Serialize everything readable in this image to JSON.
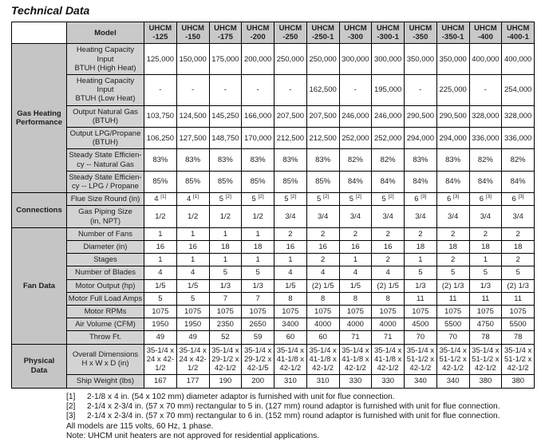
{
  "title": "Technical Data",
  "colors": {
    "header_bg": "#c9c9c9",
    "section_bg": "#c5c5c5",
    "label_bg": "#d3d3d3",
    "border": "#000000"
  },
  "table": {
    "model_header": "Model",
    "models": [
      "UHCM\n-125",
      "UHCM\n-150",
      "UHCM\n-175",
      "UHCM\n-200",
      "UHCM\n-250",
      "UHCM\n-250-1",
      "UHCM\n-300",
      "UHCM\n-300-1",
      "UHCM\n-350",
      "UHCM\n-350-1",
      "UHCM\n-400",
      "UHCM\n-400-1"
    ],
    "sections": [
      {
        "name": "Gas Heating\nPerformance",
        "rows": [
          {
            "label": "Heating Capacity Input\nBTUH (High Heat)",
            "values": [
              "125,000",
              "150,000",
              "175,000",
              "200,000",
              "250,000",
              "250,000",
              "300,000",
              "300,000",
              "350,000",
              "350,000",
              "400,000",
              "400,000"
            ]
          },
          {
            "label": "Heating Capacity Input\nBTUH (Low Heat)",
            "values": [
              "-",
              "-",
              "-",
              "-",
              "-",
              "162,500",
              "-",
              "195,000",
              "-",
              "225,000",
              "-",
              "254,000"
            ]
          },
          {
            "label": "Output Natural Gas\n(BTUH)",
            "values": [
              "103,750",
              "124,500",
              "145,250",
              "166,000",
              "207,500",
              "207,500",
              "246,000",
              "246,000",
              "290,500",
              "290,500",
              "328,000",
              "328,000"
            ]
          },
          {
            "label": "Output LPG/Propane\n(BTUH)",
            "values": [
              "106,250",
              "127,500",
              "148,750",
              "170,000",
              "212,500",
              "212,500",
              "252,000",
              "252,000",
              "294,000",
              "294,000",
              "336,000",
              "336,000"
            ]
          },
          {
            "label": "Steady State Efficien-\ncy -- Natural Gas",
            "values": [
              "83%",
              "83%",
              "83%",
              "83%",
              "83%",
              "83%",
              "82%",
              "82%",
              "83%",
              "83%",
              "82%",
              "82%"
            ]
          },
          {
            "label": "Steady State Efficien-\ncy -- LPG / Propane",
            "values": [
              "85%",
              "85%",
              "85%",
              "85%",
              "85%",
              "85%",
              "84%",
              "84%",
              "84%",
              "84%",
              "84%",
              "84%"
            ]
          }
        ]
      },
      {
        "name": "Connections",
        "rows": [
          {
            "label": "Flue Size Round (in)",
            "values": [
              "4^[1]",
              "4^[1]",
              "5^[2]",
              "5^[2]",
              "5^[2]",
              "5^[2]",
              "5^[2]",
              "5^[2]",
              "6^[3]",
              "6^[3]",
              "6^[3]",
              "6^[3]"
            ]
          },
          {
            "label": "Gas Piping Size\n(in, NPT)",
            "values": [
              "1/2",
              "1/2",
              "1/2",
              "1/2",
              "3/4",
              "3/4",
              "3/4",
              "3/4",
              "3/4",
              "3/4",
              "3/4",
              "3/4"
            ]
          }
        ]
      },
      {
        "name": "Fan Data",
        "rows": [
          {
            "label": "Number of Fans",
            "values": [
              "1",
              "1",
              "1",
              "1",
              "2",
              "2",
              "2",
              "2",
              "2",
              "2",
              "2",
              "2"
            ]
          },
          {
            "label": "Diameter (in)",
            "values": [
              "16",
              "16",
              "18",
              "18",
              "16",
              "16",
              "16",
              "16",
              "18",
              "18",
              "18",
              "18"
            ]
          },
          {
            "label": "Stages",
            "values": [
              "1",
              "1",
              "1",
              "1",
              "1",
              "2",
              "1",
              "2",
              "1",
              "2",
              "1",
              "2"
            ]
          },
          {
            "label": "Number of Blades",
            "values": [
              "4",
              "4",
              "5",
              "5",
              "4",
              "4",
              "4",
              "4",
              "5",
              "5",
              "5",
              "5"
            ]
          },
          {
            "label": "Motor Output (hp)",
            "values": [
              "1/5",
              "1/5",
              "1/3",
              "1/3",
              "1/5",
              "(2) 1/5",
              "1/5",
              "(2) 1/5",
              "1/3",
              "(2) 1/3",
              "1/3",
              "(2) 1/3"
            ]
          },
          {
            "label": "Motor Full Load Amps",
            "values": [
              "5",
              "5",
              "7",
              "7",
              "8",
              "8",
              "8",
              "8",
              "11",
              "11",
              "11",
              "11"
            ]
          },
          {
            "label": "Motor RPMs",
            "values": [
              "1075",
              "1075",
              "1075",
              "1075",
              "1075",
              "1075",
              "1075",
              "1075",
              "1075",
              "1075",
              "1075",
              "1075"
            ]
          },
          {
            "label": "Air Volume (CFM)",
            "values": [
              "1950",
              "1950",
              "2350",
              "2650",
              "3400",
              "4000",
              "4000",
              "4000",
              "4500",
              "5500",
              "4750",
              "5500"
            ]
          },
          {
            "label": "Throw Ft.",
            "values": [
              "49",
              "49",
              "52",
              "59",
              "60",
              "60",
              "71",
              "71",
              "70",
              "70",
              "78",
              "78"
            ]
          }
        ]
      },
      {
        "name": "Physical\nData",
        "rows": [
          {
            "label": "Overall Dimensions\nH x W x D (in)",
            "values": [
              "35-1/4 x 24 x 42-1/2",
              "35-1/4 x 24 x 42-1/2",
              "35-1/4 x 29-1/2 x 42-1/2",
              "35-1/4 x 29-1/2 x 42-1/5",
              "35-1/4 x 41-1/8 x 42-1/2",
              "35-1/4 x 41-1/8 x 42-1/2",
              "35-1/4 x 41-1/8 x 42-1/2",
              "35-1/4 x 41-1/8 x 42-1/2",
              "35-1/4 x 51-1/2 x 42-1/2",
              "35-1/4 x 51-1/2 x 42-1/2",
              "35-1/4 x 51-1/2 x 42-1/2",
              "35-1/4 x 51-1/2 x 42-1/2"
            ]
          },
          {
            "label": "Ship Weight (lbs)",
            "values": [
              "167",
              "177",
              "190",
              "200",
              "310",
              "310",
              "330",
              "330",
              "340",
              "340",
              "380",
              "380"
            ]
          }
        ]
      }
    ]
  },
  "notes": {
    "footnotes": [
      {
        "ref": "[1]",
        "text": "2-1/8 x 4 in. (54 x 102 mm) diameter adaptor is furnished with unit for flue connection."
      },
      {
        "ref": "[2]",
        "text": "2-1/4 x 2-3/4 in. (57 x 70 mm) rectangular to 5 in. (127 mm) round adaptor is furnished with unit for flue connection."
      },
      {
        "ref": "[3]",
        "text": "2-1/4 x 2-3/4 in. (57 x 70 mm) rectangular to 6 in. (152 mm) round adaptor is furnished with unit for flue connection."
      }
    ],
    "lines": [
      "All models are 115 volts, 60 Hz, 1 phase.",
      "Note:  UHCM unit heaters are not approved for residential applications."
    ]
  }
}
